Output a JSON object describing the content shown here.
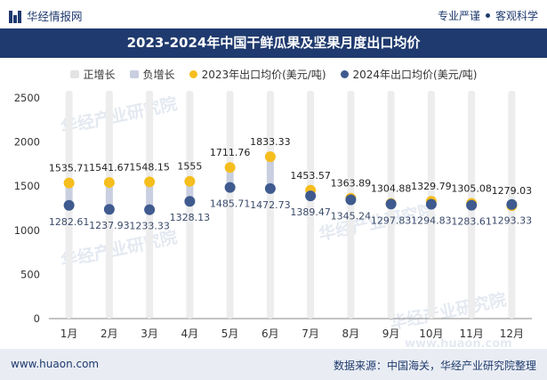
{
  "header": {
    "site_name": "华经情报网",
    "tagline_1": "专业严谨",
    "tagline_2": "客观科学"
  },
  "footer": {
    "website": "www.huaon.com",
    "source": "数据来源：中国海关，华经产业研究院整理"
  },
  "colors": {
    "brand_navy": "#1f3a6e",
    "positive_bar": "#e3e3e3",
    "negative_bar": "#c9cfe0",
    "series_2023": "#f5be1e",
    "series_2024": "#3f5a8f"
  },
  "chart_data": {
    "type": "line",
    "title": "2023-2024年中国干鲜瓜果及坚果月度出口均价",
    "categories": [
      "1月",
      "2月",
      "3月",
      "4月",
      "5月",
      "6月",
      "7月",
      "8月",
      "9月",
      "10月",
      "11月",
      "12月"
    ],
    "series": [
      {
        "name": "2023年出口均价(美元/吨)",
        "values": [
          1535.71,
          1541.67,
          1548.15,
          1555,
          1711.76,
          1833.33,
          1453.57,
          1363.89,
          1304.88,
          1329.79,
          1305.08,
          1279.03
        ]
      },
      {
        "name": "2024年出口均价(美元/吨)",
        "values": [
          1282.61,
          1237.93,
          1233.33,
          1328.13,
          1485.71,
          1472.73,
          1389.47,
          1345.24,
          1297.83,
          1294.83,
          1283.61,
          1293.33
        ]
      }
    ],
    "labels_2023": [
      "1535.71",
      "1541.67",
      "1548.15",
      "1555",
      "1711.76",
      "1833.33",
      "1453.57",
      "1363.89",
      "1304.88",
      "1329.79",
      "1305.08",
      "1279.03"
    ],
    "labels_2024": [
      "1282.61",
      "1237.93",
      "1233.33",
      "1328.13",
      "1485.71",
      "1472.73",
      "1389.47",
      "1345.24",
      "1297.83",
      "1294.83",
      "1283.61",
      "1293.33"
    ],
    "legend": [
      "正增长",
      "负增长",
      "2023年出口均价(美元/吨)",
      "2024年出口均价(美元/吨)"
    ],
    "yticks": [
      0,
      500,
      1000,
      1500,
      2000,
      2500
    ],
    "ylim": [
      0,
      2500
    ],
    "watermark": "华经产业研究院",
    "watermark_url": "www.huaon.com"
  }
}
